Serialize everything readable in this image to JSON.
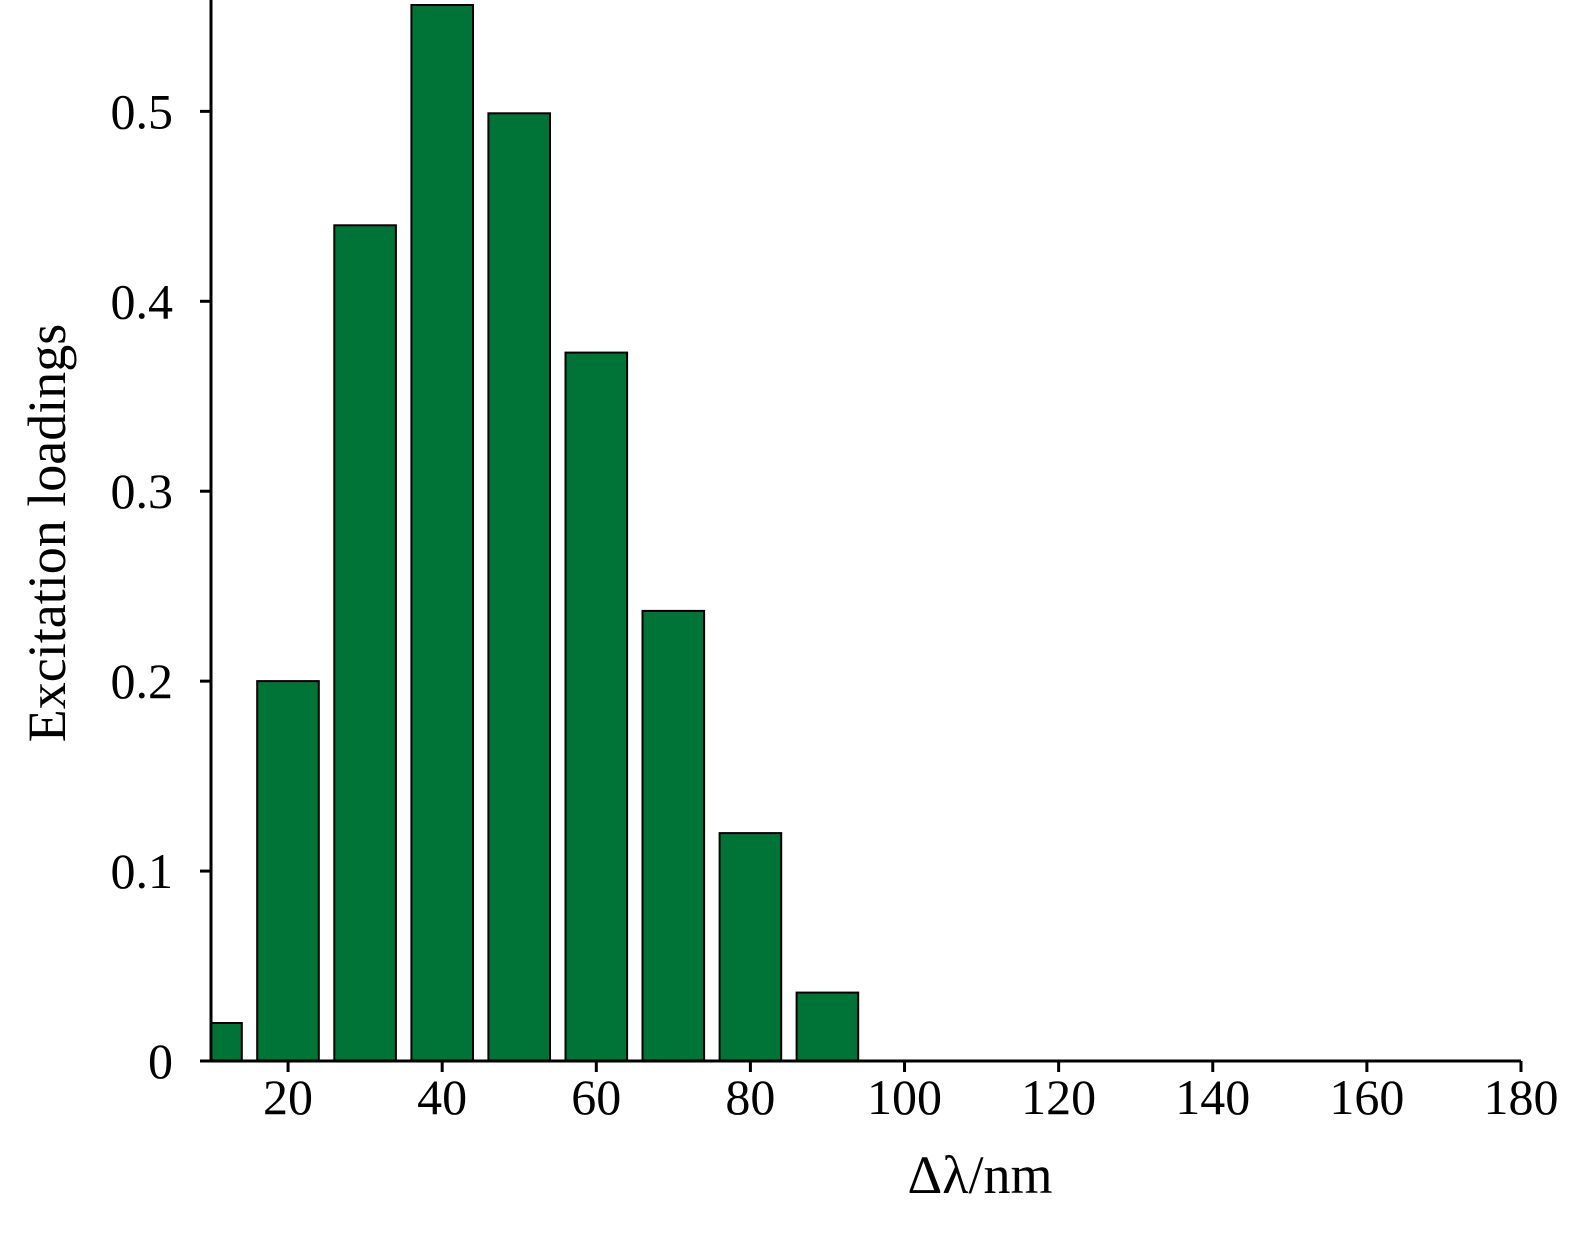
{
  "chart_data": {
    "type": "bar",
    "title": "",
    "xlabel": "Δλ/nm",
    "ylabel": "Excitation loadings",
    "x": [
      10,
      20,
      30,
      40,
      50,
      60,
      70,
      80,
      90
    ],
    "values": [
      0.02,
      0.2,
      0.44,
      0.556,
      0.499,
      0.373,
      0.237,
      0.12,
      0.036
    ],
    "xlim": [
      10,
      180
    ],
    "ylim": [
      0,
      0.556
    ],
    "xticks": [
      20,
      40,
      60,
      80,
      100,
      120,
      140,
      160,
      180
    ],
    "yticks": [
      0,
      0.1,
      0.2,
      0.3,
      0.4,
      0.5
    ],
    "ytick_labels": [
      "0",
      "0.1",
      "0.2",
      "0.3",
      "0.4",
      "0.5"
    ],
    "grid": false,
    "colors": {
      "bar_fill": "#007436",
      "bar_stroke": "#000000",
      "axis": "#000000"
    }
  }
}
